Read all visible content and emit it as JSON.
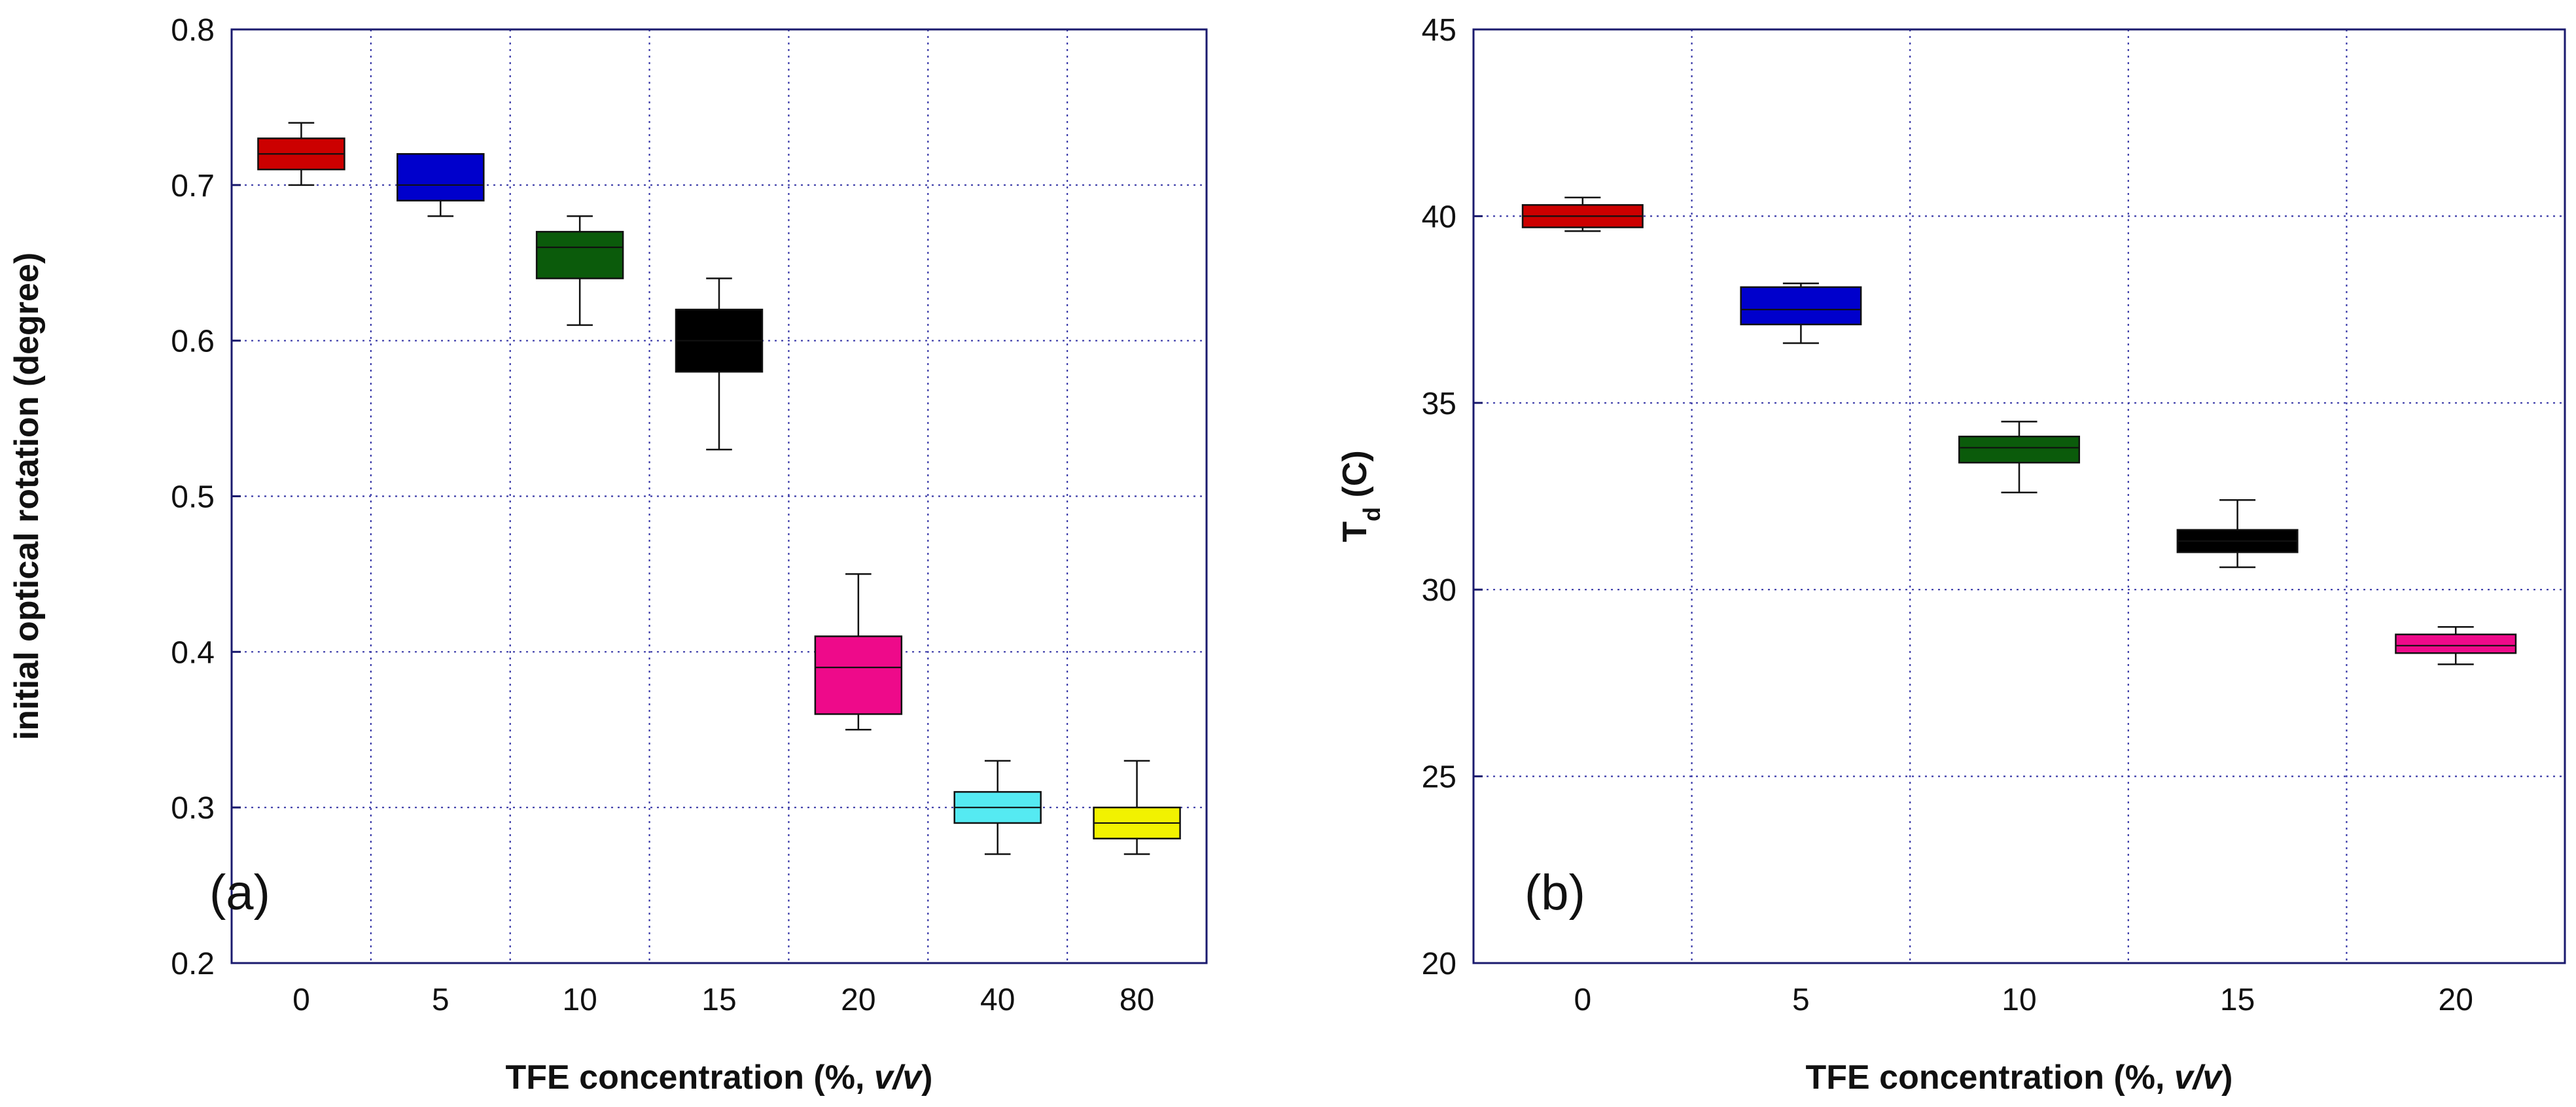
{
  "chart_data": [
    {
      "type": "box",
      "panel_label": "(a)",
      "xlabel_prefix": "TFE concentration (%, ",
      "xlabel_italic": "v/v",
      "xlabel_suffix": ")",
      "ylabel": "initial optical rotation (degree)",
      "ylim": [
        0.2,
        0.8
      ],
      "yticks": [
        "0.2",
        "0.3",
        "0.4",
        "0.5",
        "0.6",
        "0.7",
        "0.8"
      ],
      "ytick_values": [
        0.2,
        0.3,
        0.4,
        0.5,
        0.6,
        0.7,
        0.8
      ],
      "categories": [
        "0",
        "5",
        "10",
        "15",
        "20",
        "40",
        "80"
      ],
      "grid": true,
      "boxes": [
        {
          "category": "0",
          "min": 0.7,
          "q1": 0.71,
          "median": 0.72,
          "q3": 0.73,
          "max": 0.74,
          "color": "#cc0000"
        },
        {
          "category": "5",
          "min": 0.68,
          "q1": 0.69,
          "median": 0.7,
          "q3": 0.72,
          "max": 0.72,
          "color": "#0000cc"
        },
        {
          "category": "10",
          "min": 0.61,
          "q1": 0.64,
          "median": 0.66,
          "q3": 0.67,
          "max": 0.68,
          "color": "#0b5b0b"
        },
        {
          "category": "15",
          "min": 0.53,
          "q1": 0.58,
          "median": 0.6,
          "q3": 0.62,
          "max": 0.64,
          "color": "#000000"
        },
        {
          "category": "20",
          "min": 0.35,
          "q1": 0.36,
          "median": 0.39,
          "q3": 0.41,
          "max": 0.45,
          "color": "#ee0a8a"
        },
        {
          "category": "40",
          "min": 0.27,
          "q1": 0.29,
          "median": 0.3,
          "q3": 0.31,
          "max": 0.33,
          "color": "#55eaf2"
        },
        {
          "category": "80",
          "min": 0.27,
          "q1": 0.28,
          "median": 0.29,
          "q3": 0.3,
          "max": 0.33,
          "color": "#f2f200"
        }
      ]
    },
    {
      "type": "box",
      "panel_label": "(b)",
      "xlabel_prefix": "TFE concentration (%, ",
      "xlabel_italic": "v/v",
      "xlabel_suffix": ")",
      "ylabel_main": "T",
      "ylabel_sub": "d",
      "ylabel_rest": " (C)",
      "ylim": [
        20,
        45
      ],
      "yticks": [
        "20",
        "25",
        "30",
        "35",
        "40",
        "45"
      ],
      "ytick_values": [
        20,
        25,
        30,
        35,
        40,
        45
      ],
      "categories": [
        "0",
        "5",
        "10",
        "15",
        "20"
      ],
      "grid": true,
      "boxes": [
        {
          "category": "0",
          "min": 39.6,
          "q1": 39.7,
          "median": 40.0,
          "q3": 40.3,
          "max": 40.5,
          "color": "#cc0000"
        },
        {
          "category": "5",
          "min": 36.6,
          "q1": 37.1,
          "median": 37.5,
          "q3": 38.1,
          "max": 38.2,
          "color": "#0000cc"
        },
        {
          "category": "10",
          "min": 32.6,
          "q1": 33.4,
          "median": 33.8,
          "q3": 34.1,
          "max": 34.5,
          "color": "#0b5b0b"
        },
        {
          "category": "15",
          "min": 30.6,
          "q1": 31.0,
          "median": 31.3,
          "q3": 31.6,
          "max": 32.4,
          "color": "#000000"
        },
        {
          "category": "20",
          "min": 28.0,
          "q1": 28.3,
          "median": 28.5,
          "q3": 28.8,
          "max": 29.0,
          "color": "#ee0a8a"
        }
      ]
    }
  ]
}
